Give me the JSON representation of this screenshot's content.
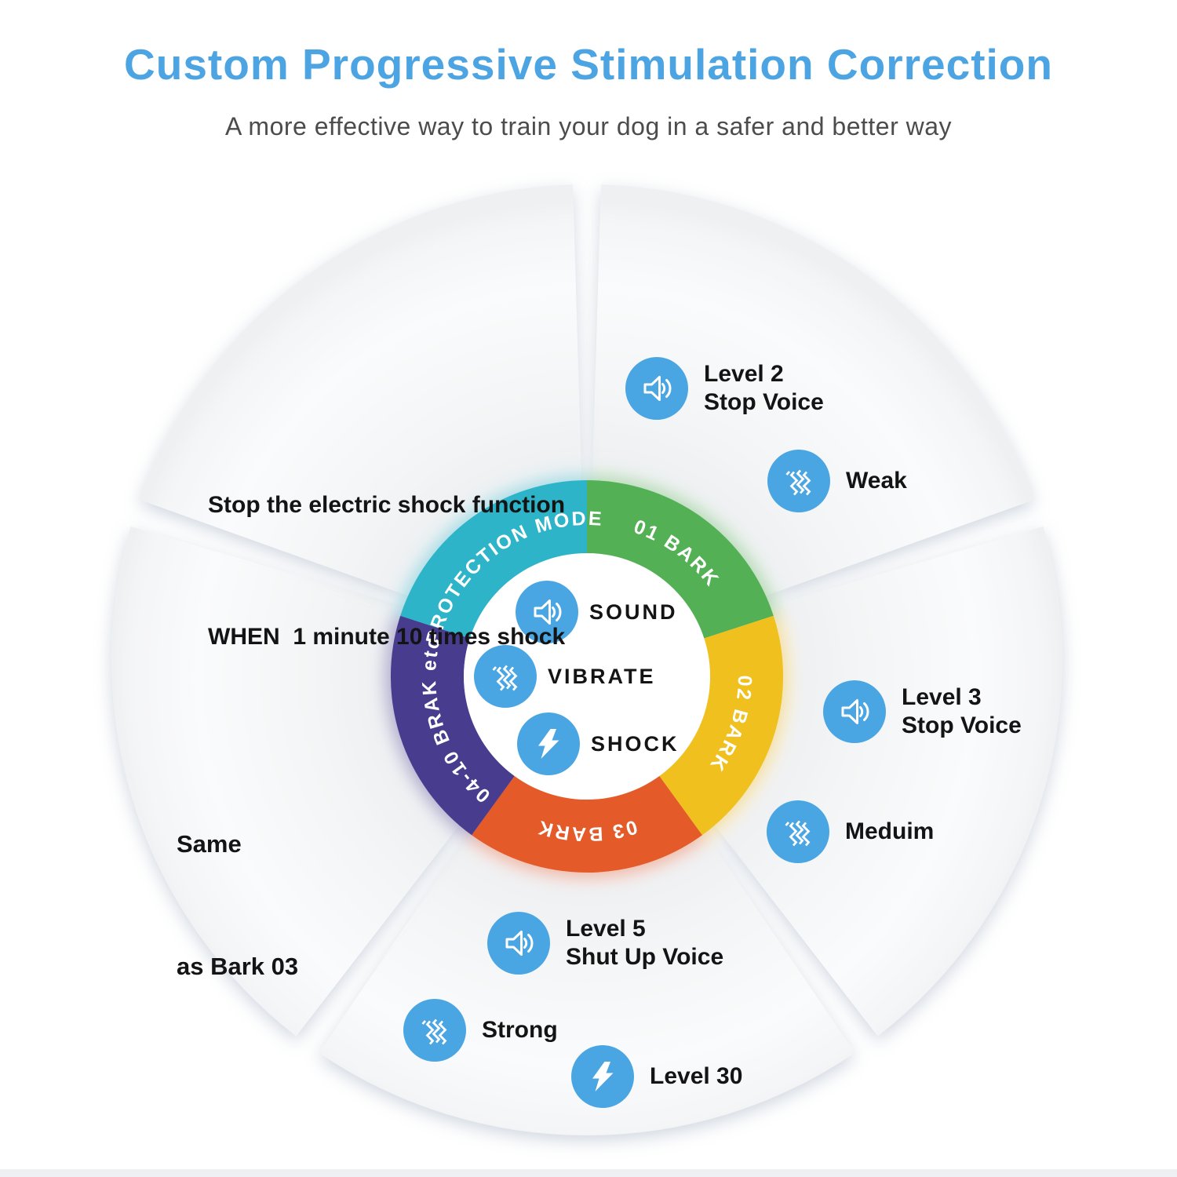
{
  "header": {
    "title": "Custom Progressive Stimulation Correction",
    "subtitle": "A more effective way to train your dog in a safer and better way"
  },
  "colors": {
    "title_blue": "#4da4e2",
    "subtitle_gray": "#4c4c4c",
    "text_black": "#141414",
    "icon_blue": "#4aa5e3"
  },
  "wheel": {
    "segments": [
      {
        "id": "bark01",
        "label": "01 BARK",
        "color": "#53b054",
        "start": 0,
        "end": 72
      },
      {
        "id": "bark02",
        "label": "02 BARK",
        "color": "#f0c01f",
        "start": 72,
        "end": 144
      },
      {
        "id": "bark03",
        "label": "03 BARK",
        "color": "#e45a28",
        "start": 144,
        "end": 216
      },
      {
        "id": "bark-etc",
        "label": "04-10 BRAK etc",
        "color": "#473c8e",
        "start": 216,
        "end": 288
      },
      {
        "id": "protection",
        "label": "PROTECTION MODE",
        "color": "#2db4c8",
        "start": 288,
        "end": 360
      }
    ],
    "modes": [
      {
        "icon": "sound-icon",
        "label": "SOUND"
      },
      {
        "icon": "vibrate-icon",
        "label": "VIBRATE"
      },
      {
        "icon": "shock-icon",
        "label": "SHOCK"
      }
    ]
  },
  "notes": {
    "protection": {
      "line1": "Stop the electric shock function",
      "line2": "WHEN  1 minute 10 times shock"
    },
    "bark01": {
      "sound_line1": "Level 2",
      "sound_line2": "Stop Voice",
      "vibrate": "Weak"
    },
    "bark02": {
      "sound_line1": "Level 3",
      "sound_line2": "Stop Voice",
      "vibrate": "Meduim"
    },
    "bark03": {
      "sound_line1": "Level 5",
      "sound_line2": "Shut Up Voice",
      "vibrate": "Strong",
      "shock": "Level 30"
    },
    "bark_etc": {
      "line1": "Same",
      "line2": "as Bark 03"
    }
  }
}
